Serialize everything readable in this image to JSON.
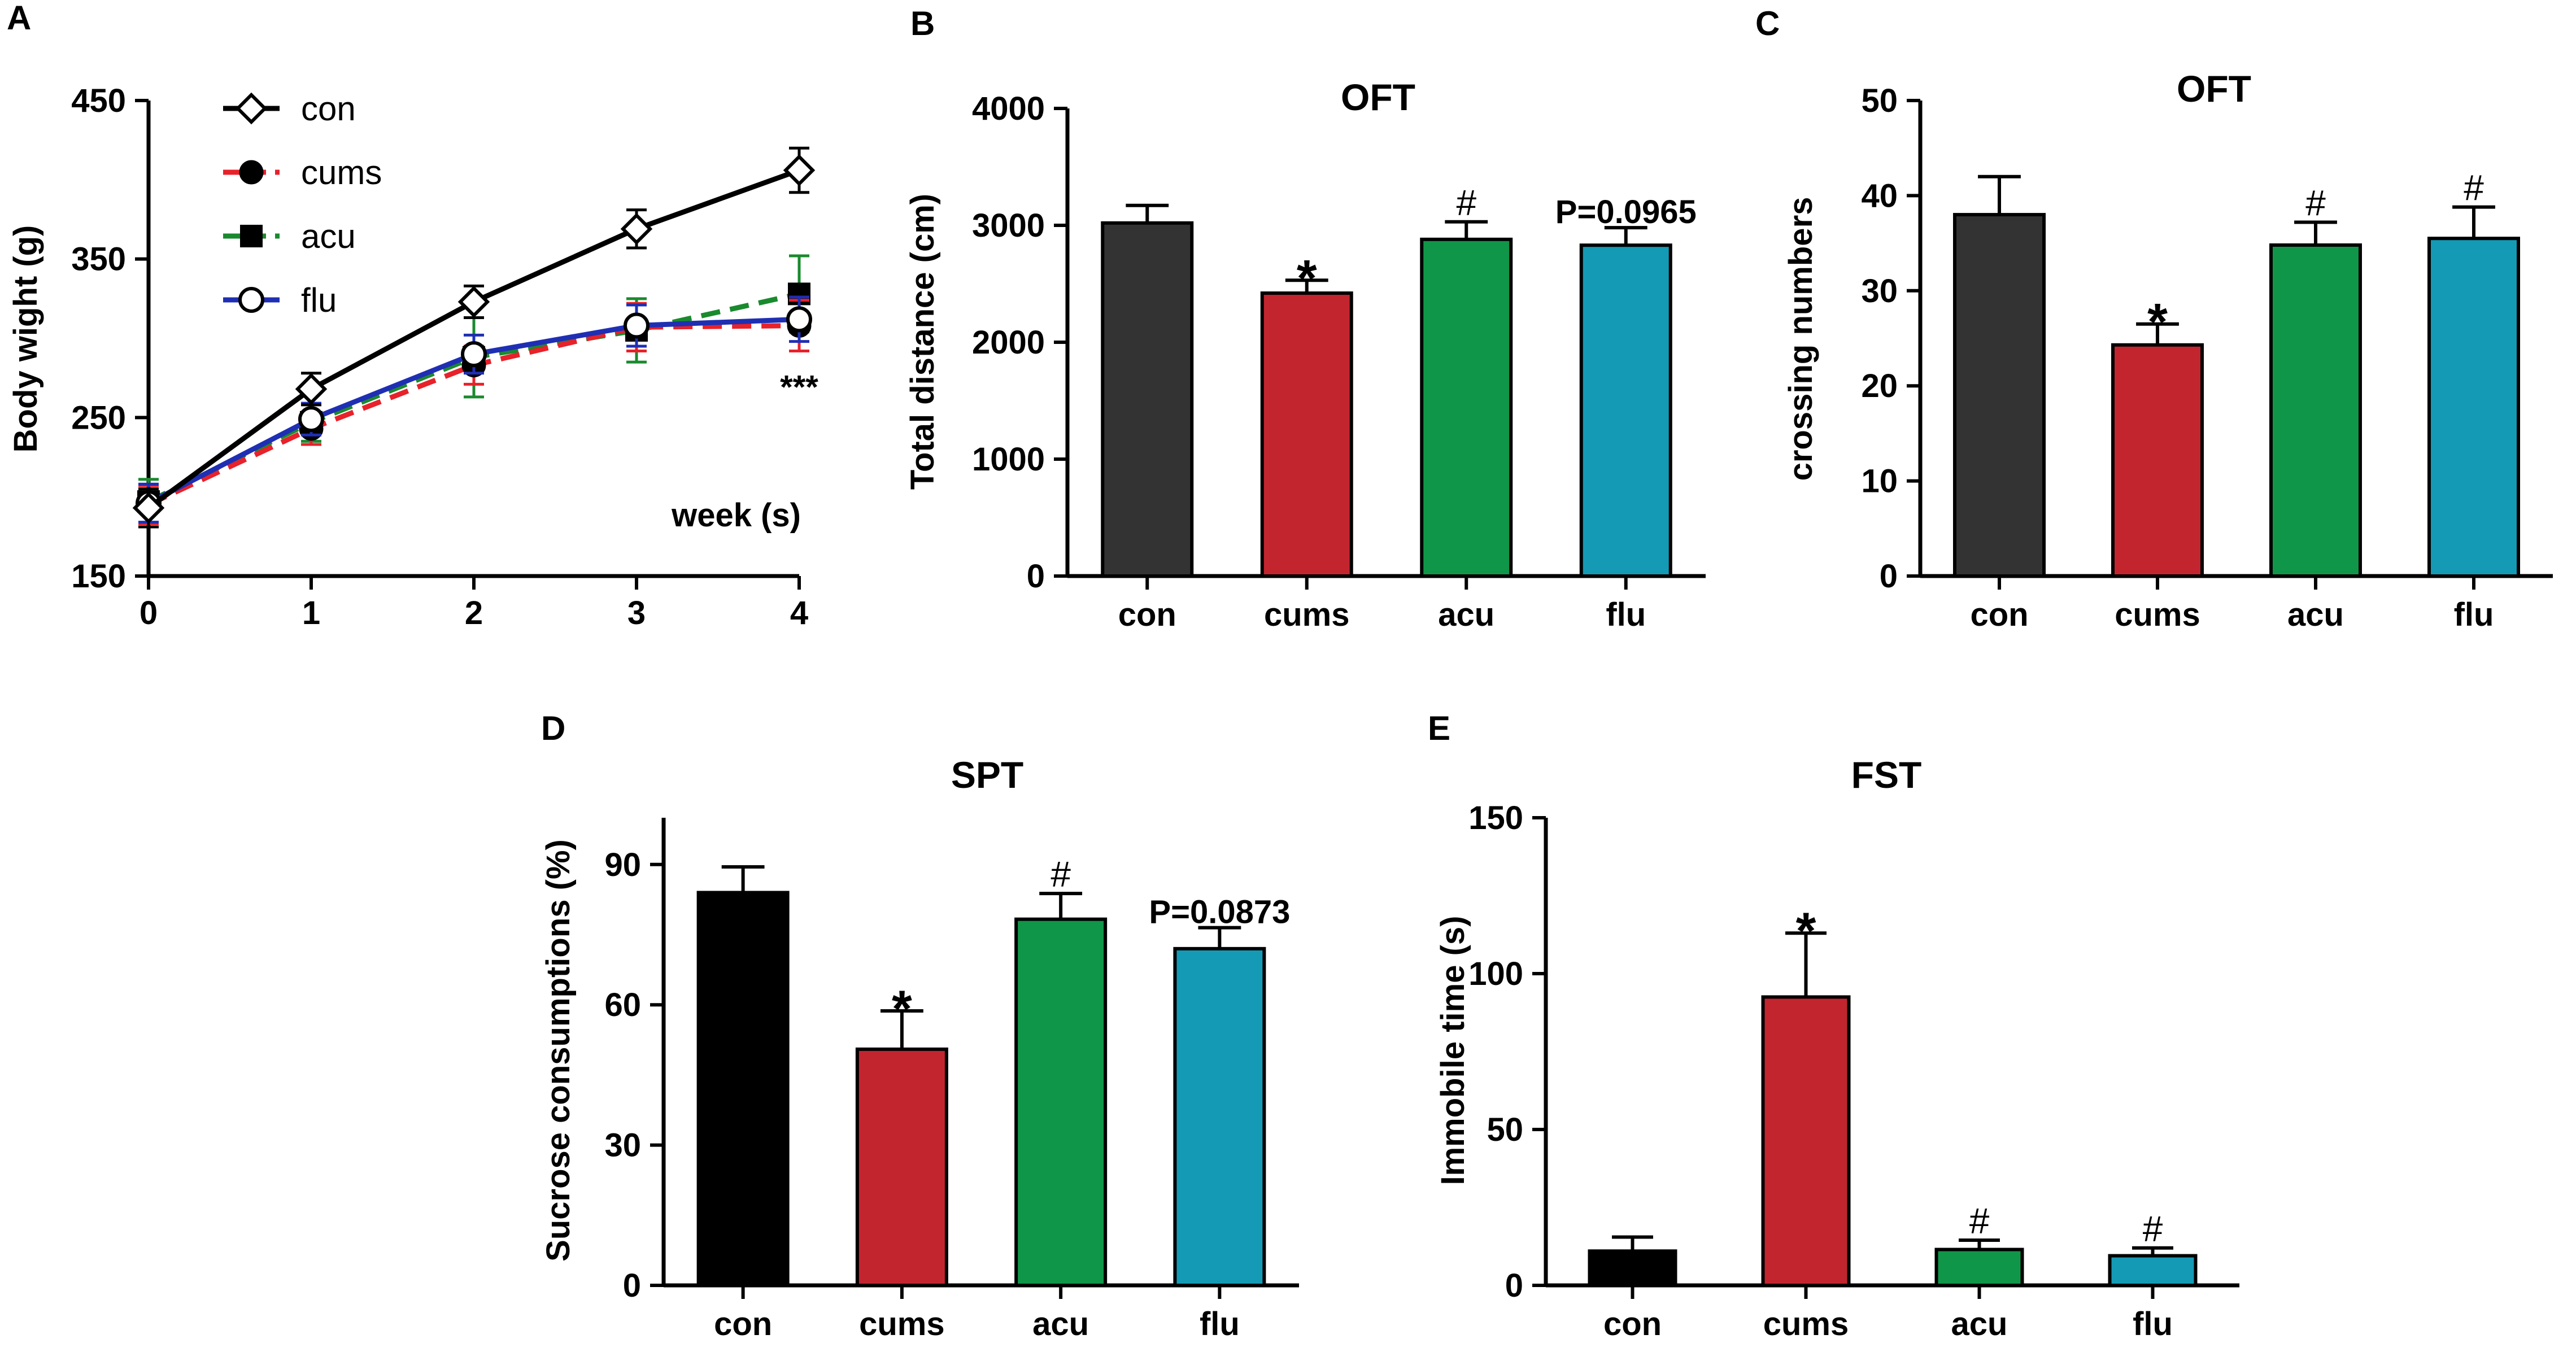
{
  "chart_data": [
    {
      "panel": "A",
      "type": "line",
      "title": "",
      "xlabel": "week (s)",
      "ylabel": "Body wight (g)",
      "x": [
        0,
        1,
        2,
        3,
        4
      ],
      "xlim": [
        0,
        4
      ],
      "ylim": [
        150,
        450
      ],
      "yticks": [
        150,
        250,
        350,
        450
      ],
      "series": [
        {
          "name": "con",
          "color": "#000000",
          "dashed": false,
          "marker": "diamond-open",
          "values": [
            193,
            268,
            323,
            369,
            406
          ],
          "errors": [
            12,
            10,
            10,
            12,
            14
          ]
        },
        {
          "name": "cums",
          "color": "#e8212a",
          "dashed": true,
          "marker": "circle-filled",
          "values": [
            195,
            243,
            283,
            307,
            308
          ],
          "errors": [
            12,
            10,
            12,
            15,
            16
          ]
        },
        {
          "name": "acu",
          "color": "#1a8a2e",
          "dashed": true,
          "marker": "square-filled",
          "values": [
            197,
            247,
            288,
            305,
            328
          ],
          "errors": [
            14,
            12,
            25,
            20,
            24
          ]
        },
        {
          "name": "flu",
          "color": "#1f2fb3",
          "dashed": false,
          "marker": "circle-open",
          "values": [
            196,
            249,
            290,
            308,
            312
          ],
          "errors": [
            12,
            10,
            12,
            13,
            14
          ]
        }
      ],
      "annotations": [
        {
          "x": 4,
          "text": "***"
        }
      ]
    },
    {
      "panel": "B",
      "type": "bar",
      "title": "OFT",
      "ylabel": "Total distance (cm)",
      "categories": [
        "con",
        "cums",
        "acu",
        "flu"
      ],
      "values": [
        3020,
        2420,
        2880,
        2830
      ],
      "errors": [
        150,
        110,
        150,
        150
      ],
      "annotations": [
        "",
        "*",
        "#",
        "P=0.0965"
      ],
      "ylim": [
        0,
        4000
      ],
      "yticks": [
        0,
        1000,
        2000,
        3000,
        4000
      ]
    },
    {
      "panel": "C",
      "type": "bar",
      "title": "OFT",
      "ylabel": "crossing numbers",
      "categories": [
        "con",
        "cums",
        "acu",
        "flu"
      ],
      "values": [
        38,
        24.3,
        34.8,
        35.5
      ],
      "errors": [
        4,
        2.2,
        2.4,
        3.3
      ],
      "annotations": [
        "",
        "*",
        "#",
        "#"
      ],
      "ylim": [
        0,
        50
      ],
      "yticks": [
        0,
        10,
        20,
        30,
        40,
        50
      ]
    },
    {
      "panel": "D",
      "type": "bar",
      "title": "SPT",
      "ylabel": "Sucrose consumptions (%)",
      "categories": [
        "con",
        "cums",
        "acu",
        "flu"
      ],
      "values": [
        84,
        50.5,
        78.3,
        72
      ],
      "errors": [
        5.5,
        8.2,
        5.5,
        4.5
      ],
      "annotations": [
        "",
        "*",
        "#",
        "P=0.0873"
      ],
      "ylim": [
        0,
        100
      ],
      "yticks": [
        0,
        30,
        60,
        90
      ]
    },
    {
      "panel": "E",
      "type": "bar",
      "title": "FST",
      "ylabel": "Immobile time (s)",
      "categories": [
        "con",
        "cums",
        "acu",
        "flu"
      ],
      "values": [
        11,
        92.5,
        11.5,
        9.5
      ],
      "errors": [
        4.5,
        20.5,
        3,
        2.5
      ],
      "annotations": [
        "",
        "*",
        "#",
        "#"
      ],
      "ylim": [
        0,
        150
      ],
      "yticks": [
        0,
        50,
        100,
        150
      ]
    }
  ],
  "bar_colors": [
    "#333333",
    "#c3252f",
    "#109648",
    "#149ab5"
  ],
  "bar_colors_spt": [
    "#000000",
    "#c3252f",
    "#109648",
    "#149ab5"
  ]
}
